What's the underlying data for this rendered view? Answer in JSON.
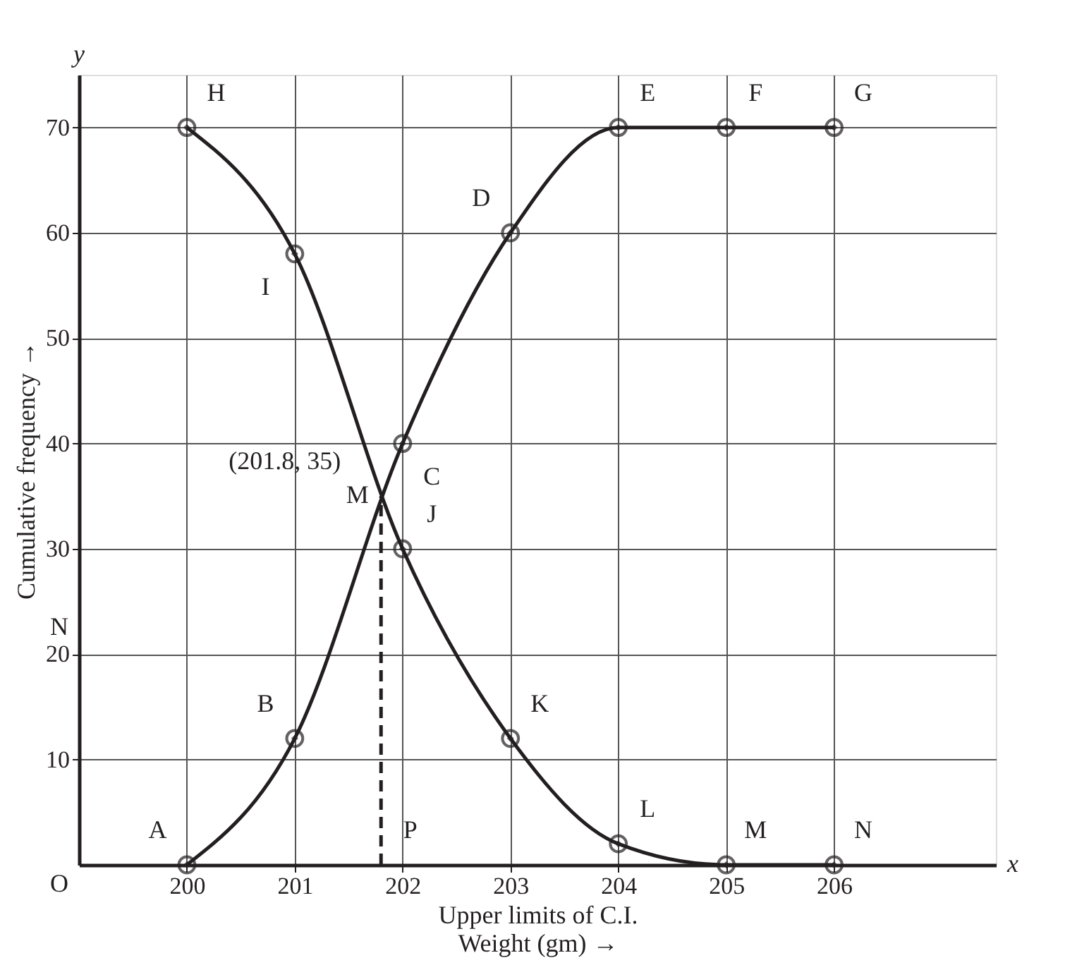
{
  "chart_data": {
    "type": "line",
    "xlabel": "Upper limits of C.I.\nWeight (gm) →",
    "ylabel": "Cumulative frequency →",
    "xlim": [
      199,
      207.5
    ],
    "ylim": [
      0,
      75
    ],
    "xticks": [
      200,
      201,
      202,
      203,
      204,
      205,
      206
    ],
    "yticks": [
      10,
      20,
      30,
      40,
      50,
      60,
      70
    ],
    "grid": true,
    "marker": "circle",
    "line_style": "solid",
    "series": [
      {
        "color": "#231f20",
        "x": [
          200,
          201,
          202,
          203,
          204,
          205,
          206
        ],
        "values": [
          0,
          12,
          40,
          60,
          70,
          70,
          70
        ]
      },
      {
        "color": "#231f20",
        "x": [
          200,
          201,
          202,
          203,
          204,
          205,
          206
        ],
        "values": [
          70,
          58,
          30,
          12,
          2,
          0,
          0
        ]
      },
      {
        "color": "#231f20",
        "x": [
          201.8,
          201.8
        ],
        "values": [
          0,
          35
        ],
        "line_style": "dashed",
        "marker": "none"
      }
    ],
    "annotations": [
      {
        "text": "A",
        "x": 200,
        "y": 0
      },
      {
        "text": "B",
        "x": 201,
        "y": 12
      },
      {
        "text": "C",
        "x": 202,
        "y": 40
      },
      {
        "text": "D",
        "x": 203,
        "y": 60
      },
      {
        "text": "E",
        "x": 204,
        "y": 70
      },
      {
        "text": "F",
        "x": 205,
        "y": 70
      },
      {
        "text": "G",
        "x": 206,
        "y": 70
      },
      {
        "text": "H",
        "x": 200,
        "y": 70
      },
      {
        "text": "I",
        "x": 201,
        "y": 58
      },
      {
        "text": "J",
        "x": 202,
        "y": 30
      },
      {
        "text": "K",
        "x": 203,
        "y": 12
      },
      {
        "text": "L",
        "x": 204,
        "y": 2
      },
      {
        "text": "M",
        "x": 205,
        "y": 0
      },
      {
        "text": "N",
        "x": 206,
        "y": 0
      },
      {
        "text": "M",
        "x": 201.8,
        "y": 35
      },
      {
        "text": "(201.8, 35)",
        "x": 201.8,
        "y": 35
      },
      {
        "text": "P",
        "x": 201.8,
        "y": 0
      },
      "O",
      "N",
      "x",
      "y"
    ]
  }
}
